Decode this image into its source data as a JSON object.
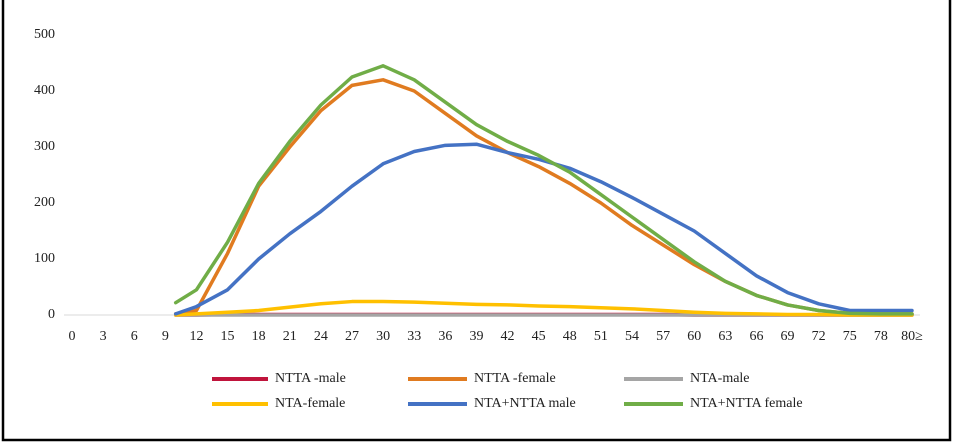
{
  "chart_data": {
    "type": "line",
    "x": [
      10,
      12,
      15,
      18,
      21,
      24,
      27,
      30,
      33,
      36,
      39,
      42,
      45,
      48,
      51,
      54,
      57,
      60,
      63,
      66,
      69,
      72,
      75,
      78,
      81
    ],
    "xlim": [
      0,
      81
    ],
    "xticks": [
      0,
      3,
      6,
      9,
      12,
      15,
      18,
      21,
      24,
      27,
      30,
      33,
      36,
      39,
      42,
      45,
      48,
      51,
      54,
      57,
      60,
      63,
      66,
      69,
      72,
      75,
      78,
      {
        "value": 81,
        "label": "80≥"
      }
    ],
    "ylim": [
      0,
      500
    ],
    "yticks": [
      0,
      100,
      200,
      300,
      400,
      500
    ],
    "series": [
      {
        "name": "NTTA -male",
        "color": "#c0143c",
        "values": [
          0,
          0,
          1,
          1,
          1,
          1,
          1,
          1,
          1,
          1,
          1,
          1,
          1,
          1,
          1,
          1,
          1,
          0,
          0,
          0,
          0,
          0,
          0,
          0,
          0
        ]
      },
      {
        "name": "NTTA -female",
        "color": "#e07b20",
        "values": [
          2,
          8,
          110,
          230,
          300,
          365,
          410,
          420,
          400,
          360,
          320,
          290,
          265,
          235,
          200,
          160,
          125,
          90,
          60,
          35,
          18,
          8,
          3,
          2,
          2
        ]
      },
      {
        "name": "NTA-male",
        "color": "#a5a5a5",
        "values": [
          0,
          0,
          0,
          0,
          0,
          0,
          0,
          0,
          0,
          0,
          0,
          0,
          0,
          0,
          0,
          0,
          0,
          0,
          0,
          0,
          0,
          0,
          0,
          0,
          0
        ]
      },
      {
        "name": "NTA-female",
        "color": "#ffc000",
        "values": [
          0,
          2,
          5,
          8,
          14,
          20,
          24,
          24,
          23,
          21,
          19,
          18,
          16,
          15,
          13,
          11,
          8,
          5,
          3,
          2,
          1,
          1,
          0,
          0,
          0
        ]
      },
      {
        "name": "NTA+NTTA male",
        "color": "#4472c4",
        "values": [
          2,
          15,
          45,
          100,
          145,
          185,
          230,
          270,
          292,
          303,
          305,
          290,
          278,
          262,
          238,
          210,
          180,
          150,
          110,
          70,
          40,
          20,
          8,
          8,
          8
        ]
      },
      {
        "name": "NTA+NTTA female",
        "color": "#70ad47",
        "values": [
          22,
          45,
          130,
          235,
          310,
          375,
          425,
          445,
          420,
          380,
          340,
          310,
          285,
          255,
          215,
          175,
          135,
          95,
          60,
          35,
          18,
          8,
          3,
          2,
          2
        ]
      }
    ]
  }
}
